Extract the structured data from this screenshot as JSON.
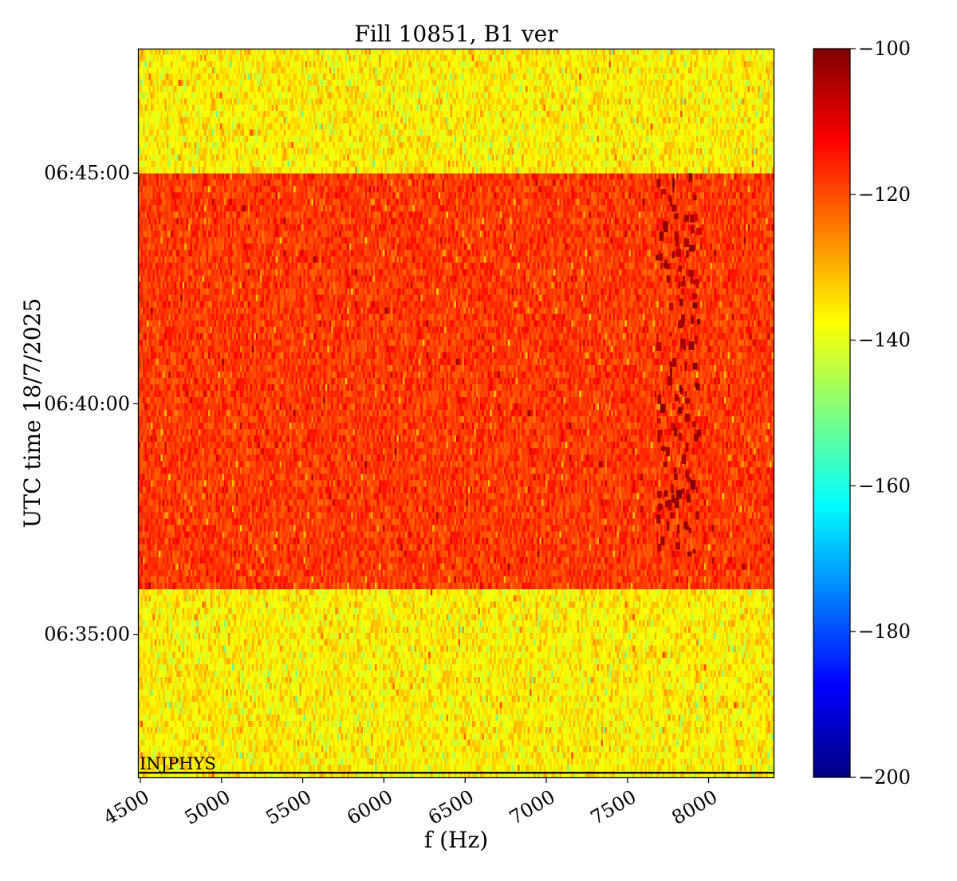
{
  "chart_data": {
    "type": "heatmap",
    "title": "Fill 10851, B1 ver",
    "xlabel": "f (Hz)",
    "ylabel": "UTC time 18/7/2025",
    "xlim": [
      4490,
      8400
    ],
    "x_ticks": [
      4500,
      5000,
      5500,
      6000,
      6500,
      7000,
      7500,
      8000
    ],
    "y_ticks": [
      "06:35:00",
      "06:40:00",
      "06:45:00"
    ],
    "y_tick_seconds": [
      0,
      300,
      600
    ],
    "ylim_seconds": [
      -186,
      762
    ],
    "colorbar": {
      "colormap": "jet",
      "range": [
        -200,
        -100
      ],
      "ticks": [
        -100,
        -120,
        -140,
        -160,
        -180,
        -200
      ],
      "tick_labels": [
        "−100",
        "−120",
        "−140",
        "−160",
        "−180",
        "−200"
      ]
    },
    "regions": [
      {
        "from": "06:31:54",
        "to": "06:35:59",
        "level_db": -136,
        "spread_db": 5
      },
      {
        "from": "06:35:59",
        "to": "06:45:00",
        "level_db": -118,
        "spread_db": 4
      },
      {
        "from": "06:45:00",
        "to": "06:47:42",
        "level_db": -136,
        "spread_db": 5
      }
    ],
    "features": [
      {
        "description_hz": [
          7670,
          7930
        ],
        "from": "06:36:45",
        "to": "06:45:00",
        "level_db": -104
      }
    ],
    "annotations": [
      {
        "text": "INJPHYS",
        "time": "06:32:00"
      }
    ]
  }
}
